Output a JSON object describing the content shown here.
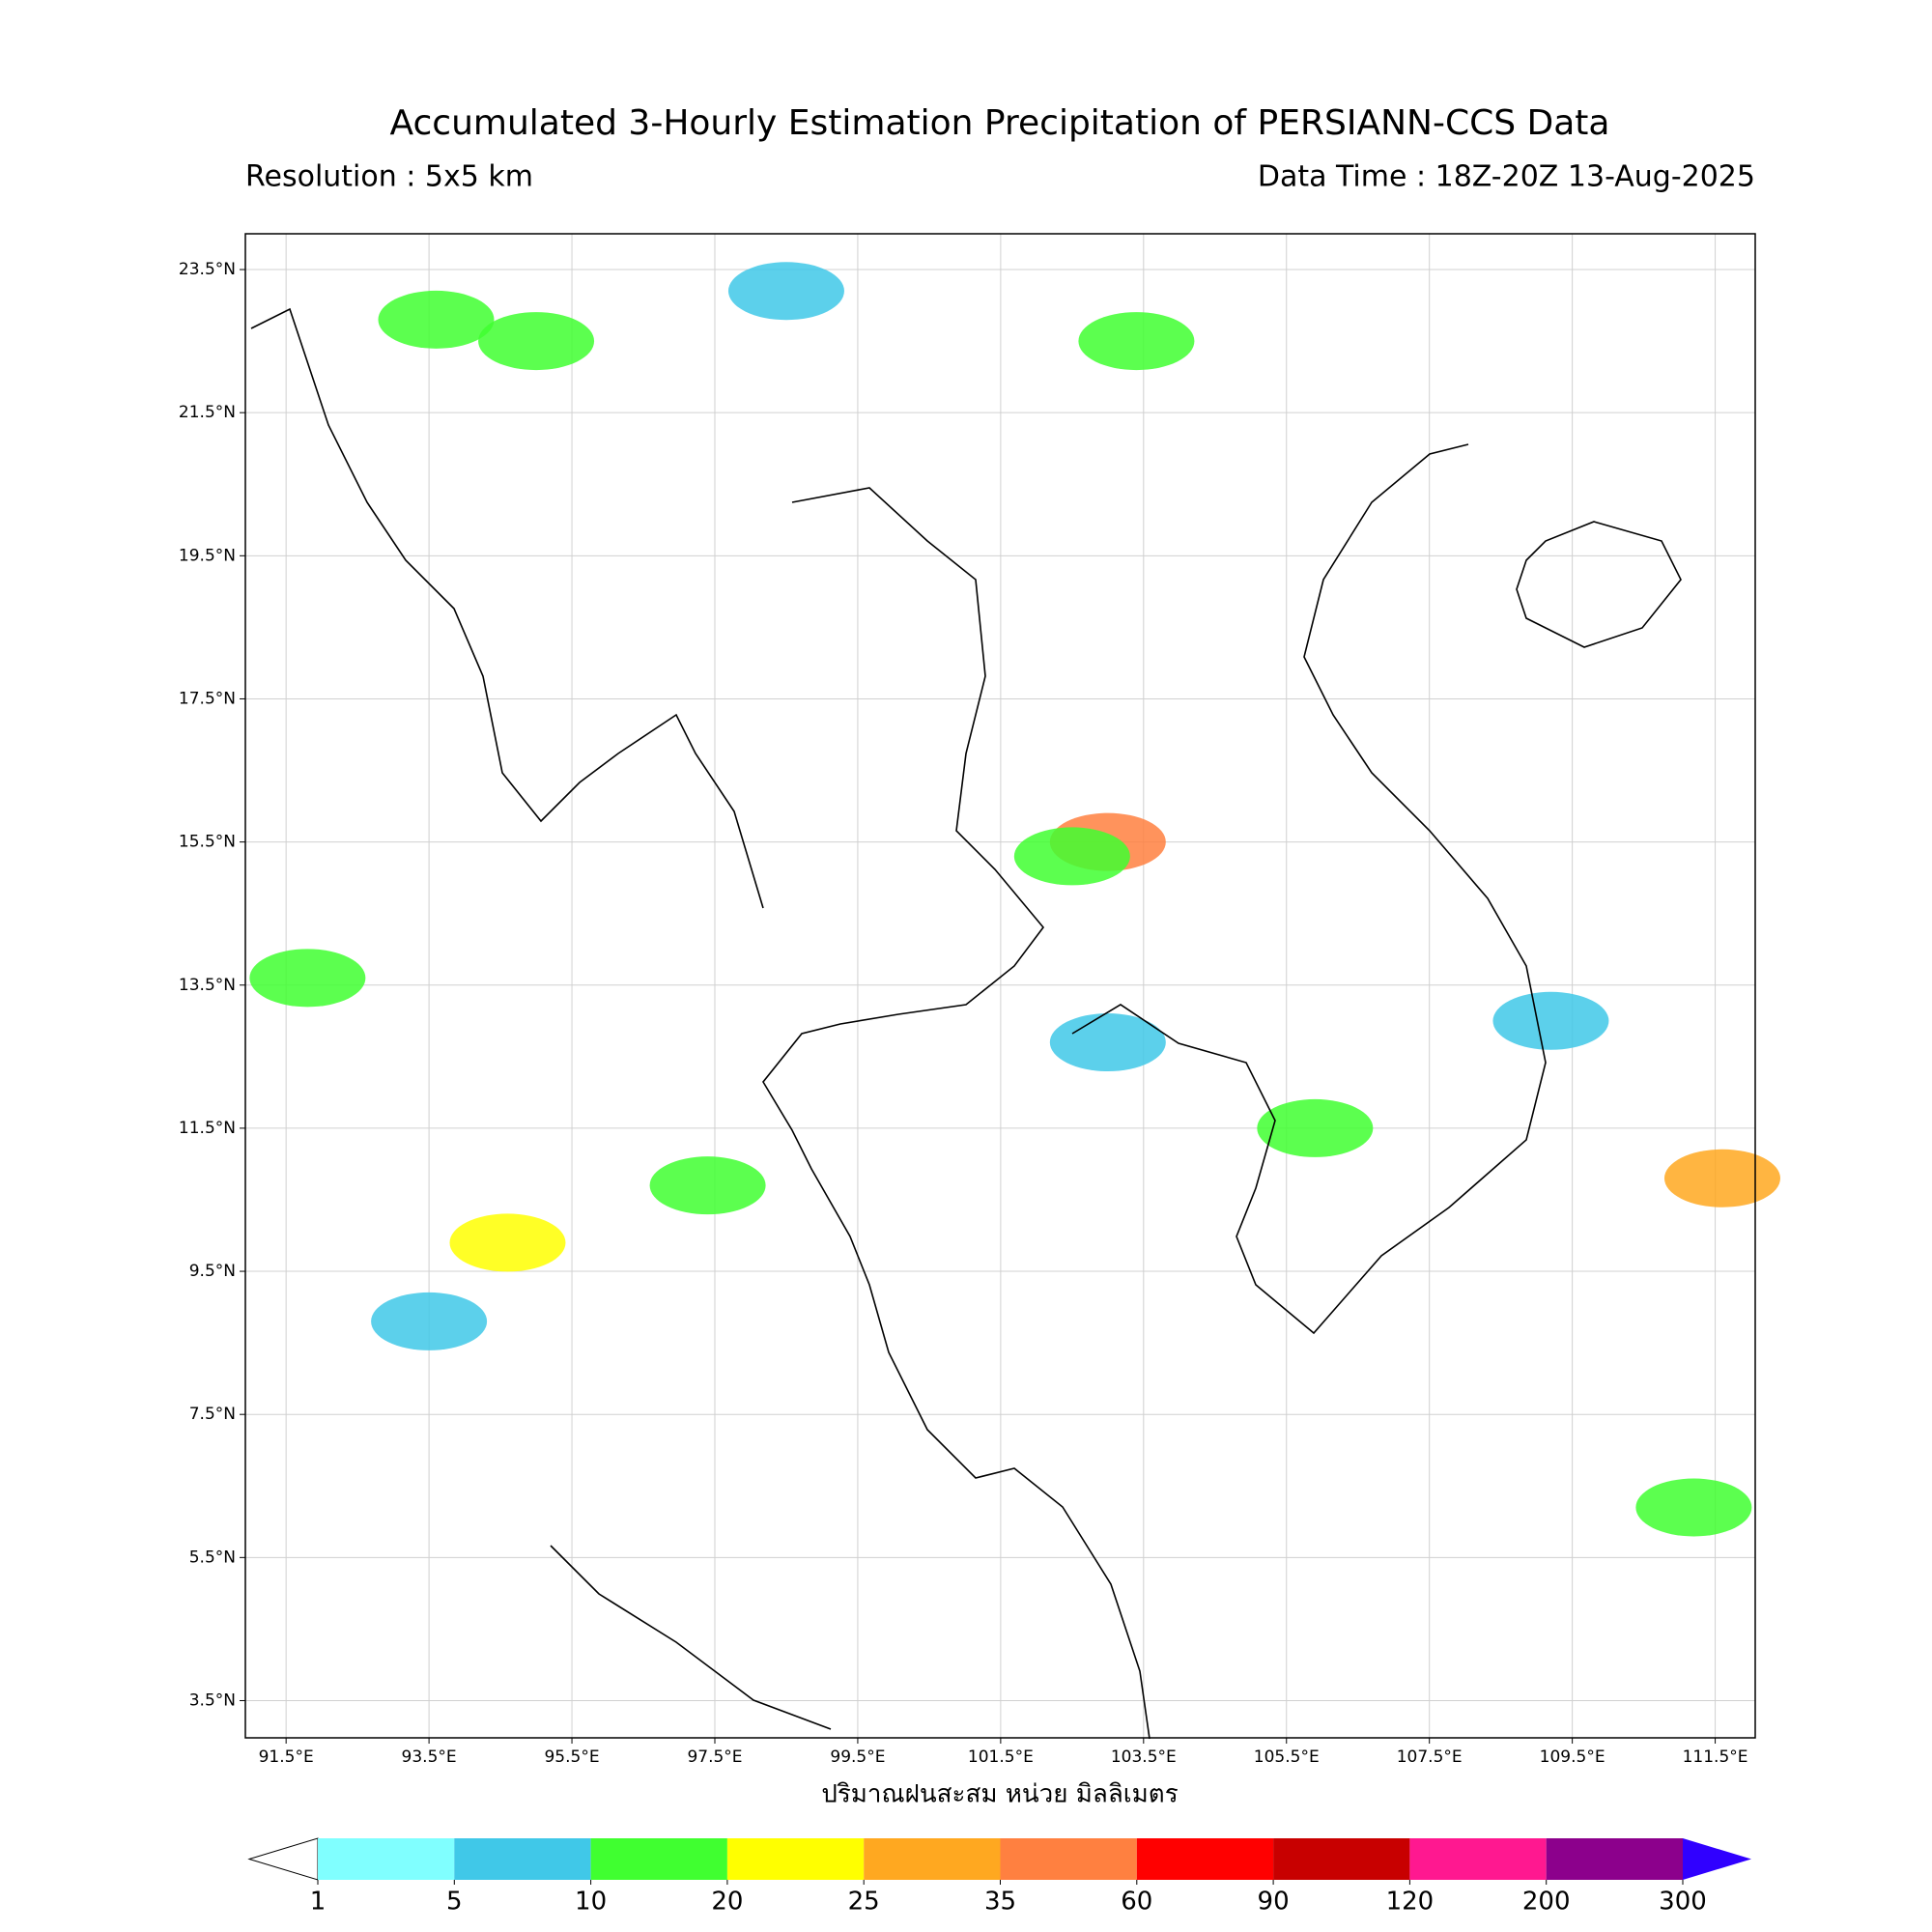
{
  "chart_data": {
    "type": "map",
    "title": "Accumulated 3-Hourly Estimation Precipitation of PERSIANN-CCS Data",
    "subtitle_left": "Resolution : 5x5 km",
    "subtitle_right": "Data Time : 18Z-20Z 13-Aug-2025",
    "colorbar_label": "ปริมาณฝนสะสม หน่วย มิลลิเมตร",
    "xlim": [
      90.93,
      112.06
    ],
    "ylim": [
      2.98,
      24.0
    ],
    "xticks": [
      {
        "value": 91.5,
        "label": "91.5°E"
      },
      {
        "value": 93.5,
        "label": "93.5°E"
      },
      {
        "value": 95.5,
        "label": "95.5°E"
      },
      {
        "value": 97.5,
        "label": "97.5°E"
      },
      {
        "value": 99.5,
        "label": "99.5°E"
      },
      {
        "value": 101.5,
        "label": "101.5°E"
      },
      {
        "value": 103.5,
        "label": "103.5°E"
      },
      {
        "value": 105.5,
        "label": "105.5°E"
      },
      {
        "value": 107.5,
        "label": "107.5°E"
      },
      {
        "value": 109.5,
        "label": "109.5°E"
      },
      {
        "value": 111.5,
        "label": "111.5°E"
      }
    ],
    "yticks": [
      {
        "value": 3.5,
        "label": "3.5°N"
      },
      {
        "value": 5.5,
        "label": "5.5°N"
      },
      {
        "value": 7.5,
        "label": "7.5°N"
      },
      {
        "value": 9.5,
        "label": "9.5°N"
      },
      {
        "value": 11.5,
        "label": "11.5°N"
      },
      {
        "value": 13.5,
        "label": "13.5°N"
      },
      {
        "value": 15.5,
        "label": "15.5°N"
      },
      {
        "value": 17.5,
        "label": "17.5°N"
      },
      {
        "value": 19.5,
        "label": "19.5°N"
      },
      {
        "value": 21.5,
        "label": "21.5°N"
      },
      {
        "value": 23.5,
        "label": "23.5°N"
      }
    ],
    "grid": true,
    "levels": [
      1,
      5,
      10,
      20,
      25,
      35,
      60,
      90,
      120,
      200,
      300
    ],
    "colors": [
      "#80ffff",
      "#40c8e8",
      "#40ff30",
      "#ffff00",
      "#ffa820",
      "#ff8040",
      "#ff0000",
      "#c80000",
      "#ff1890",
      "#8c008c"
    ],
    "extend_color": "#3000ff",
    "rain_areas": [
      {
        "lon": 103.0,
        "lat": 15.5,
        "value": 40
      },
      {
        "lon": 102.5,
        "lat": 15.3,
        "value": 12
      },
      {
        "lon": 111.6,
        "lat": 10.8,
        "value": 30
      },
      {
        "lon": 105.9,
        "lat": 11.5,
        "value": 12
      },
      {
        "lon": 94.6,
        "lat": 9.9,
        "value": 22
      },
      {
        "lon": 97.4,
        "lat": 10.7,
        "value": 12
      },
      {
        "lon": 93.6,
        "lat": 22.8,
        "value": 12
      },
      {
        "lon": 95.0,
        "lat": 22.5,
        "value": 15
      },
      {
        "lon": 91.8,
        "lat": 13.6,
        "value": 12
      },
      {
        "lon": 93.5,
        "lat": 8.8,
        "value": 6
      },
      {
        "lon": 103.0,
        "lat": 12.7,
        "value": 6
      },
      {
        "lon": 111.2,
        "lat": 6.2,
        "value": 12
      },
      {
        "lon": 98.5,
        "lat": 23.2,
        "value": 8
      },
      {
        "lon": 103.4,
        "lat": 22.5,
        "value": 10
      },
      {
        "lon": 109.2,
        "lat": 13.0,
        "value": 6
      }
    ]
  }
}
